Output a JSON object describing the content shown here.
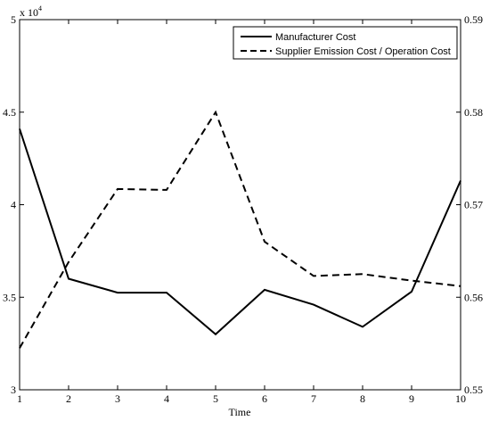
{
  "chart_data": {
    "type": "line",
    "xlabel": "Time",
    "x": [
      1,
      2,
      3,
      4,
      5,
      6,
      7,
      8,
      9,
      10
    ],
    "xlim": [
      1,
      10
    ],
    "y_left": {
      "ylim": [
        30000,
        50000
      ],
      "ticks": [
        3,
        3.5,
        4,
        4.5,
        5
      ],
      "tick_labels": [
        "3",
        "3.5",
        "4",
        "4.5",
        "5"
      ],
      "exponent_label": "x 10",
      "exponent": "4"
    },
    "y_right": {
      "ylim": [
        0.55,
        0.59
      ],
      "ticks": [
        0.55,
        0.56,
        0.57,
        0.58,
        0.59
      ],
      "tick_labels": [
        "0.55",
        "0.56",
        "0.57",
        "0.58",
        "0.59"
      ]
    },
    "series": [
      {
        "name": "Manufacturer Cost",
        "axis": "left",
        "style": "solid",
        "values": [
          44100,
          36000,
          35250,
          35250,
          33000,
          35400,
          34600,
          33400,
          35300,
          41300
        ]
      },
      {
        "name": "Supplier Emission Cost / Operation Cost",
        "axis": "right",
        "style": "dashed",
        "values": [
          0.5545,
          0.5638,
          0.5717,
          0.5716,
          0.58,
          0.566,
          0.5623,
          0.5625,
          0.5618,
          0.5612
        ]
      }
    ],
    "legend": "top-right",
    "grid": false,
    "colors": {
      "line": "#000000",
      "background": "#ffffff"
    }
  }
}
